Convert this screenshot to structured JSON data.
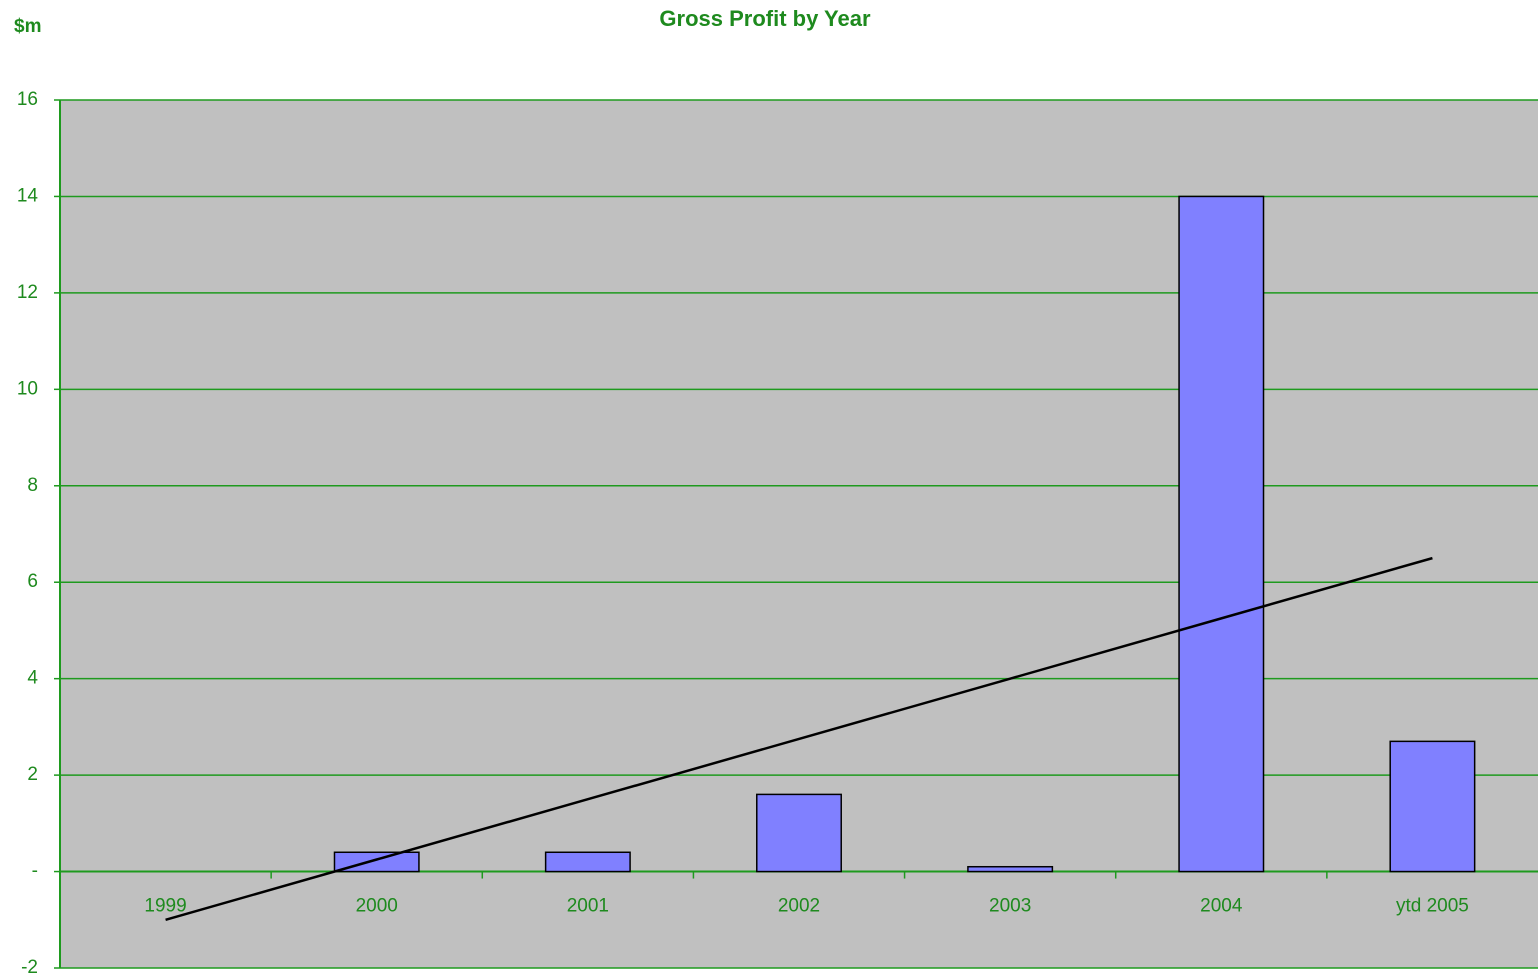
{
  "chart_data": {
    "type": "bar",
    "title": "Gross Profit by Year",
    "y_label": "$m",
    "categories": [
      "1999",
      "2000",
      "2001",
      "2002",
      "2003",
      "2004",
      "ytd 2005"
    ],
    "values": [
      0,
      0.4,
      0.4,
      1.6,
      0.1,
      14.0,
      2.7
    ],
    "color": "#8080ff",
    "trendline": {
      "values": [
        -1.0,
        0.25,
        1.5,
        2.75,
        4.0,
        5.25,
        6.5
      ],
      "color": "#000000"
    },
    "ylim": [
      -2,
      16
    ],
    "yticks": [
      -2,
      {
        "value": 0,
        "label": "-"
      },
      2,
      4,
      6,
      8,
      10,
      12,
      14,
      16
    ],
    "grid": true,
    "grid_color": "#1e9a1e",
    "plot_background": "#c0c0c0"
  }
}
